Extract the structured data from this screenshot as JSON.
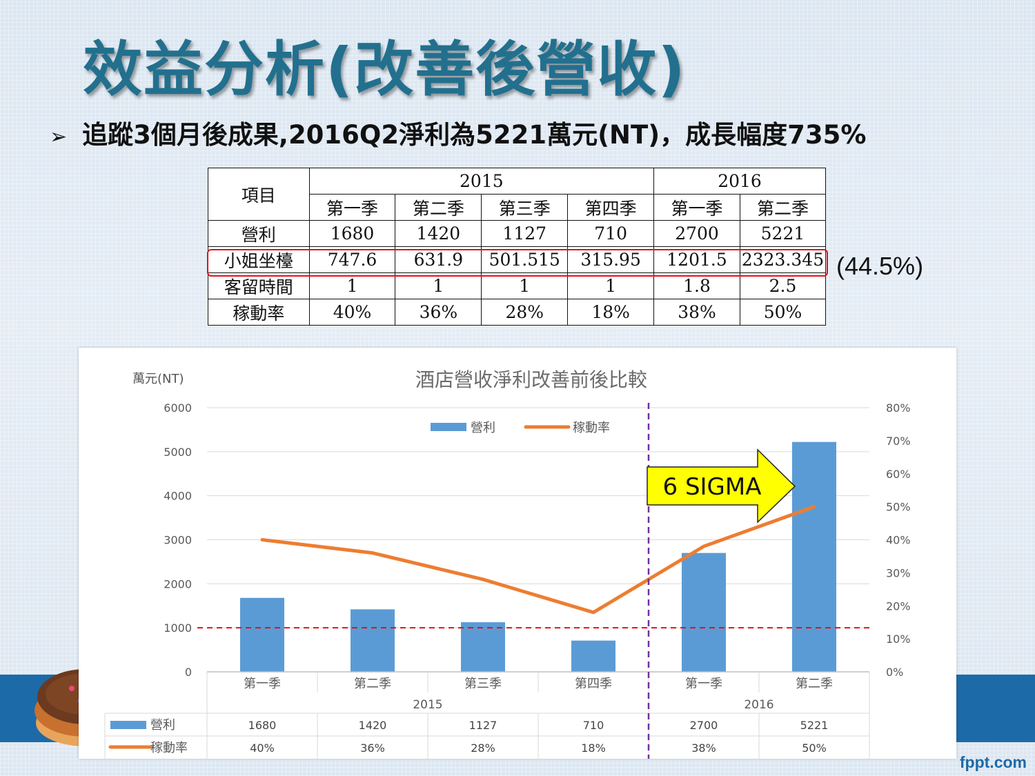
{
  "slide": {
    "title": "效益分析(改善後營收)",
    "bullet": "追蹤3個月後成果,2016Q2淨利為5221萬元(NT)，成長幅度735%",
    "bullet_marker": "➢",
    "brand": "fppt.com"
  },
  "table": {
    "header_item": "項目",
    "years": [
      "2015",
      "2016"
    ],
    "quarters": [
      "第一季",
      "第二季",
      "第三季",
      "第四季",
      "第一季",
      "第二季"
    ],
    "rows": [
      {
        "label": "營利",
        "values": [
          "1680",
          "1420",
          "1127",
          "710",
          "2700",
          "5221"
        ]
      },
      {
        "label": "小姐坐檯",
        "values": [
          "747.6",
          "631.9",
          "501.515",
          "315.95",
          "1201.5",
          "2323.345"
        ]
      },
      {
        "label": "客留時間",
        "values": [
          "1",
          "1",
          "1",
          "1",
          "1.8",
          "2.5"
        ]
      },
      {
        "label": "稼動率",
        "values": [
          "40%",
          "36%",
          "28%",
          "18%",
          "38%",
          "50%"
        ]
      }
    ],
    "highlight_note": "(44.5%)"
  },
  "chart_data": {
    "type": "bar",
    "title": "酒店營收淨利改善前後比較",
    "ylabel": "萬元(NT)",
    "ylim": [
      0,
      6000
    ],
    "y_ticks": [
      "0",
      "1000",
      "2000",
      "3000",
      "4000",
      "5000",
      "6000"
    ],
    "y2lim": [
      0,
      0.8
    ],
    "y2_ticks": [
      "0%",
      "10%",
      "20%",
      "30%",
      "40%",
      "50%",
      "60%",
      "70%",
      "80%"
    ],
    "categories": [
      "第一季",
      "第二季",
      "第三季",
      "第四季",
      "第一季",
      "第二季"
    ],
    "groups": [
      "2015",
      "2016"
    ],
    "series": [
      {
        "name": "營利",
        "type": "bar",
        "axis": "left",
        "color": "#5b9bd5",
        "values": [
          1680,
          1420,
          1127,
          710,
          2700,
          5221
        ],
        "labels": [
          "1680",
          "1420",
          "1127",
          "710",
          "2700",
          "5221"
        ]
      },
      {
        "name": "稼動率",
        "type": "line",
        "axis": "right",
        "color": "#ed7d31",
        "values": [
          0.4,
          0.36,
          0.28,
          0.18,
          0.38,
          0.5
        ],
        "labels": [
          "40%",
          "36%",
          "28%",
          "18%",
          "38%",
          "50%"
        ]
      }
    ],
    "reference_line": {
      "value": 1000,
      "color": "#e0101a",
      "style": "dashed"
    },
    "divider_color": "#7030a0",
    "annotation": {
      "text": "6 SIGMA",
      "fill": "#ffff00"
    },
    "legend": "top-center",
    "grid": true
  }
}
